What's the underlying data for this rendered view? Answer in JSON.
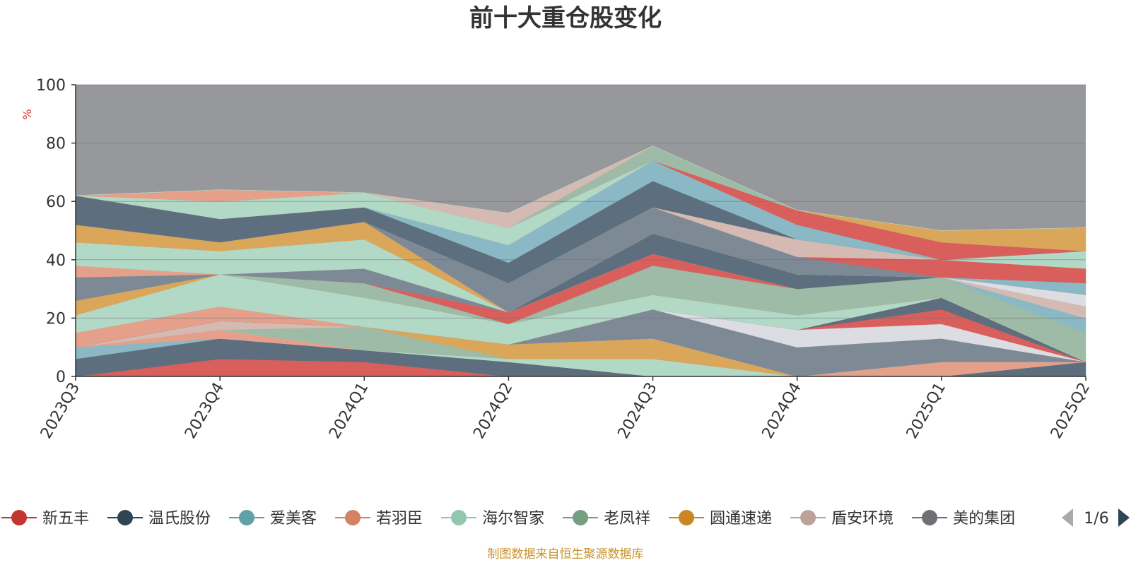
{
  "chart_data": {
    "type": "area",
    "title": "前十大重仓股变化",
    "y_unit": "%",
    "ylim": [
      0,
      100
    ],
    "yticks": [
      0,
      20,
      40,
      60,
      80,
      100
    ],
    "categories": [
      "2023Q3",
      "2023Q4",
      "2024Q1",
      "2024Q2",
      "2024Q3",
      "2024Q4",
      "2025Q1",
      "2025Q2"
    ],
    "background_color": "#97989b",
    "series": [
      {
        "name": "新五丰",
        "color": "#d95f5c",
        "values": [
          0,
          6,
          5,
          0,
          0,
          0,
          0,
          0
        ]
      },
      {
        "name": "温氏股份",
        "color": "#5d6e7e",
        "values": [
          6,
          7,
          4,
          5,
          0,
          0,
          0,
          5
        ]
      },
      {
        "name": "爱美客",
        "color": "#8ab8c4",
        "values": [
          4,
          0,
          0,
          0,
          0,
          0,
          0,
          0
        ]
      },
      {
        "name": "若羽臣",
        "color": "#e4a08a",
        "values": [
          0,
          3,
          0,
          0,
          0,
          0,
          5,
          0
        ]
      },
      {
        "name": "海尔智家",
        "color": "#b1d9c6",
        "values": [
          0,
          0,
          0,
          1,
          6,
          0,
          0,
          0
        ]
      },
      {
        "name": "老凤祥",
        "color": "#9dbba6",
        "values": [
          0,
          0,
          8,
          0,
          0,
          0,
          0,
          0
        ]
      },
      {
        "name": "圆通速递",
        "color": "#d9a65a",
        "values": [
          0,
          0,
          0,
          5,
          7,
          0,
          0,
          0
        ]
      },
      {
        "name": "盾安环境",
        "color": "#d5bab3",
        "values": [
          0,
          3,
          0,
          0,
          0,
          0,
          0,
          0
        ]
      },
      {
        "name": "美的集团",
        "color": "#7d8a96",
        "values": [
          0,
          0,
          0,
          0,
          10,
          10,
          8,
          0
        ]
      },
      {
        "name": "",
        "color": "#dcdde2",
        "values": [
          0,
          0,
          0,
          0,
          0,
          6,
          5,
          0
        ]
      },
      {
        "name": "",
        "color": "#d95f5c",
        "values": [
          0,
          0,
          0,
          0,
          0,
          0,
          5,
          0
        ]
      },
      {
        "name": "",
        "color": "#5d6e7e",
        "values": [
          0,
          0,
          0,
          0,
          0,
          0,
          4,
          0
        ]
      },
      {
        "name": "",
        "color": "#e4a08a",
        "values": [
          5,
          5,
          0,
          0,
          0,
          0,
          0,
          0
        ]
      },
      {
        "name": "",
        "color": "#b1d9c6",
        "values": [
          6,
          11,
          10,
          7,
          5,
          5,
          0,
          0
        ]
      },
      {
        "name": "",
        "color": "#d9a65a",
        "values": [
          5,
          0,
          0,
          0,
          0,
          0,
          0,
          0
        ]
      },
      {
        "name": "",
        "color": "#9dbba6",
        "values": [
          0,
          0,
          5,
          0,
          10,
          9,
          7,
          10
        ]
      },
      {
        "name": "",
        "color": "#8ab8c4",
        "values": [
          0,
          0,
          0,
          0,
          0,
          0,
          0,
          5
        ]
      },
      {
        "name": "",
        "color": "#d95f5c",
        "values": [
          0,
          0,
          0,
          4,
          4,
          0,
          0,
          0
        ]
      },
      {
        "name": "",
        "color": "#7d8a96",
        "values": [
          8,
          0,
          5,
          0,
          0,
          0,
          0,
          0
        ]
      },
      {
        "name": "",
        "color": "#e4a08a",
        "values": [
          4,
          0,
          0,
          0,
          0,
          0,
          0,
          0
        ]
      },
      {
        "name": "",
        "color": "#b1d9c6",
        "values": [
          8,
          8,
          10,
          0,
          0,
          0,
          0,
          0
        ]
      },
      {
        "name": "",
        "color": "#d5bab3",
        "values": [
          0,
          0,
          0,
          0,
          0,
          0,
          0,
          4
        ]
      },
      {
        "name": "",
        "color": "#5d6e7e",
        "values": [
          0,
          0,
          0,
          0,
          7,
          5,
          0,
          0
        ]
      },
      {
        "name": "",
        "color": "#dcdde2",
        "values": [
          0,
          0,
          0,
          0,
          0,
          0,
          0,
          4
        ]
      },
      {
        "name": "",
        "color": "#d9a65a",
        "values": [
          6,
          3,
          6,
          0,
          0,
          0,
          0,
          0
        ]
      },
      {
        "name": "",
        "color": "#8ab8c4",
        "values": [
          0,
          0,
          0,
          0,
          0,
          0,
          0,
          4
        ]
      },
      {
        "name": "",
        "color": "#7d8a96",
        "values": [
          0,
          0,
          0,
          10,
          9,
          6,
          0,
          0
        ]
      },
      {
        "name": "",
        "color": "#d95f5c",
        "values": [
          0,
          0,
          0,
          0,
          0,
          0,
          6,
          5
        ]
      },
      {
        "name": "",
        "color": "#d5bab3",
        "values": [
          0,
          0,
          0,
          0,
          0,
          6,
          0,
          0
        ]
      },
      {
        "name": "",
        "color": "#b1d9c6",
        "values": [
          0,
          0,
          0,
          0,
          0,
          0,
          0,
          6
        ]
      },
      {
        "name": "",
        "color": "#5d6e7e",
        "values": [
          10,
          8,
          5,
          7,
          9,
          0,
          0,
          0
        ]
      },
      {
        "name": "",
        "color": "#8ab8c4",
        "values": [
          0,
          0,
          0,
          6,
          7,
          5,
          0,
          0
        ]
      },
      {
        "name": "",
        "color": "#d95f5c",
        "values": [
          0,
          0,
          0,
          0,
          0,
          5,
          6,
          0
        ]
      },
      {
        "name": "",
        "color": "#b1d9c6",
        "values": [
          0,
          6,
          5,
          6,
          0,
          0,
          0,
          0
        ]
      },
      {
        "name": "",
        "color": "#d9a65a",
        "values": [
          0,
          0,
          0,
          0,
          0,
          0,
          4,
          8
        ]
      },
      {
        "name": "",
        "color": "#e4a08a",
        "values": [
          0,
          4,
          0,
          0,
          0,
          0,
          0,
          0
        ]
      },
      {
        "name": "",
        "color": "#9dbba6",
        "values": [
          0,
          0,
          0,
          0,
          5,
          0,
          0,
          0
        ]
      },
      {
        "name": "",
        "color": "#d5bab3",
        "values": [
          0,
          0,
          0,
          5,
          0,
          0,
          0,
          0
        ]
      },
      {
        "name": "",
        "color": "#b1d9c6",
        "values": [
          0,
          0,
          0,
          0,
          0,
          0,
          0,
          0
        ]
      }
    ]
  },
  "legend": {
    "items": [
      {
        "label": "新五丰",
        "color": "#c23531"
      },
      {
        "label": "温氏股份",
        "color": "#2f4554"
      },
      {
        "label": "爱美客",
        "color": "#61a0a8"
      },
      {
        "label": "若羽臣",
        "color": "#d48265"
      },
      {
        "label": "海尔智家",
        "color": "#91c7ae"
      },
      {
        "label": "老凤祥",
        "color": "#749f83"
      },
      {
        "label": "圆通速递",
        "color": "#ca8622"
      },
      {
        "label": "盾安环境",
        "color": "#bda29a"
      },
      {
        "label": "美的集团",
        "color": "#6e7074"
      }
    ],
    "page_text": "1/6"
  },
  "source_note": "制图数据来自恒生聚源数据库"
}
